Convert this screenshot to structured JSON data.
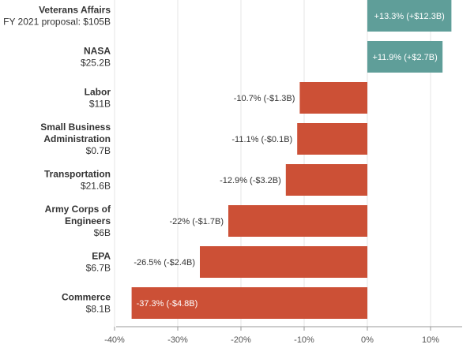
{
  "chart_data": {
    "type": "bar",
    "orientation": "horizontal",
    "categories": [
      {
        "name": "Veterans Affairs",
        "detail": "FY 2021 proposal: $105B"
      },
      {
        "name": "NASA",
        "detail": "$25.2B"
      },
      {
        "name": "Labor",
        "detail": "$11B"
      },
      {
        "name": "Small Business Administration",
        "name_lines": [
          "Small Business",
          "Administration"
        ],
        "detail": "$0.7B"
      },
      {
        "name": "Transportation",
        "detail": "$21.6B"
      },
      {
        "name": "Army Corps of Engineers",
        "name_lines": [
          "Army Corps of",
          "Engineers"
        ],
        "detail": "$6B"
      },
      {
        "name": "EPA",
        "detail": "$6.7B"
      },
      {
        "name": "Commerce",
        "detail": "$8.1B"
      }
    ],
    "values": [
      13.3,
      11.9,
      -10.7,
      -11.1,
      -12.9,
      -22,
      -26.5,
      -37.3
    ],
    "data_labels": [
      "+13.3% (+$12.3B)",
      "+11.9% (+$2.7B)",
      "-10.7% (-$1.3B)",
      "-11.1% (-$0.1B)",
      "-12.9% (-$3.2B)",
      "-22% (-$1.7B)",
      "-26.5% (-$2.4B)",
      "-37.3% (-$4.8B)"
    ],
    "x_ticks": [
      -40,
      -30,
      -20,
      -10,
      0,
      10
    ],
    "x_tick_labels": [
      "-40%",
      "-30%",
      "-20%",
      "-10%",
      "0%",
      "10%"
    ],
    "xlim": [
      -40,
      15
    ],
    "grid": true,
    "colors": {
      "positive": "#5f9e99",
      "negative": "#cc5036"
    }
  }
}
